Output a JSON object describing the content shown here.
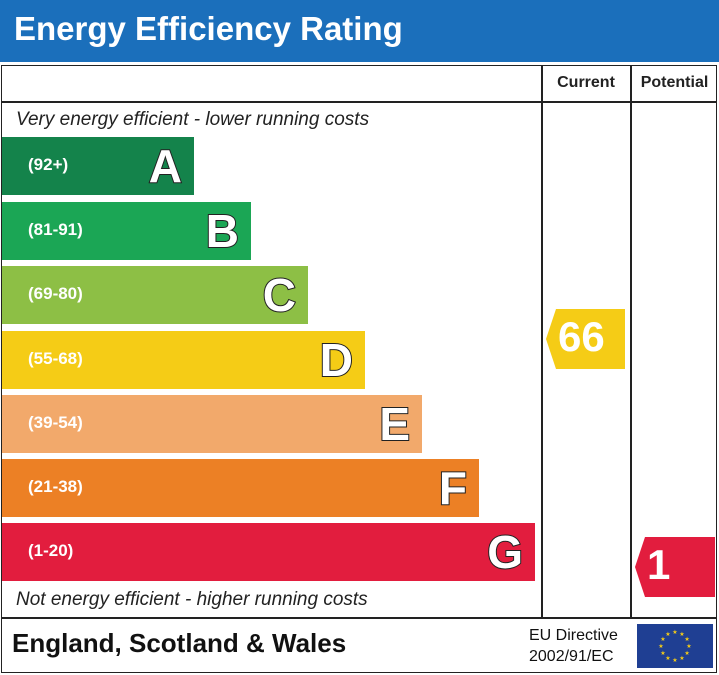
{
  "header": {
    "title": "Energy Efficiency Rating"
  },
  "columns": {
    "current": "Current",
    "potential": "Potential"
  },
  "notes": {
    "top": "Very energy efficient - lower running costs",
    "bottom": "Not energy efficient - higher running costs"
  },
  "chart_data": {
    "type": "bar",
    "title": "Energy Efficiency Rating",
    "categories": [
      "A",
      "B",
      "C",
      "D",
      "E",
      "F",
      "G"
    ],
    "bands": [
      {
        "letter": "A",
        "range": "(92+)",
        "color": "#14834b"
      },
      {
        "letter": "B",
        "range": "(81-91)",
        "color": "#1ba655"
      },
      {
        "letter": "C",
        "range": "(69-80)",
        "color": "#8dbf45"
      },
      {
        "letter": "D",
        "range": "(55-68)",
        "color": "#f5cc16"
      },
      {
        "letter": "E",
        "range": "(39-54)",
        "color": "#f2a96b"
      },
      {
        "letter": "F",
        "range": "(21-38)",
        "color": "#ec8025"
      },
      {
        "letter": "G",
        "range": "(1-20)",
        "color": "#e21d3e"
      }
    ],
    "current": {
      "value": "66",
      "band": "D",
      "color": "#f5cc16"
    },
    "potential": {
      "value": "1",
      "band": "G",
      "color": "#e21d3e"
    }
  },
  "footer": {
    "country": "England, Scotland & Wales",
    "eu_line1": "EU Directive",
    "eu_line2": "2002/91/EC",
    "flag_color": "#1f3f93",
    "star_color": "#f5cc16"
  }
}
